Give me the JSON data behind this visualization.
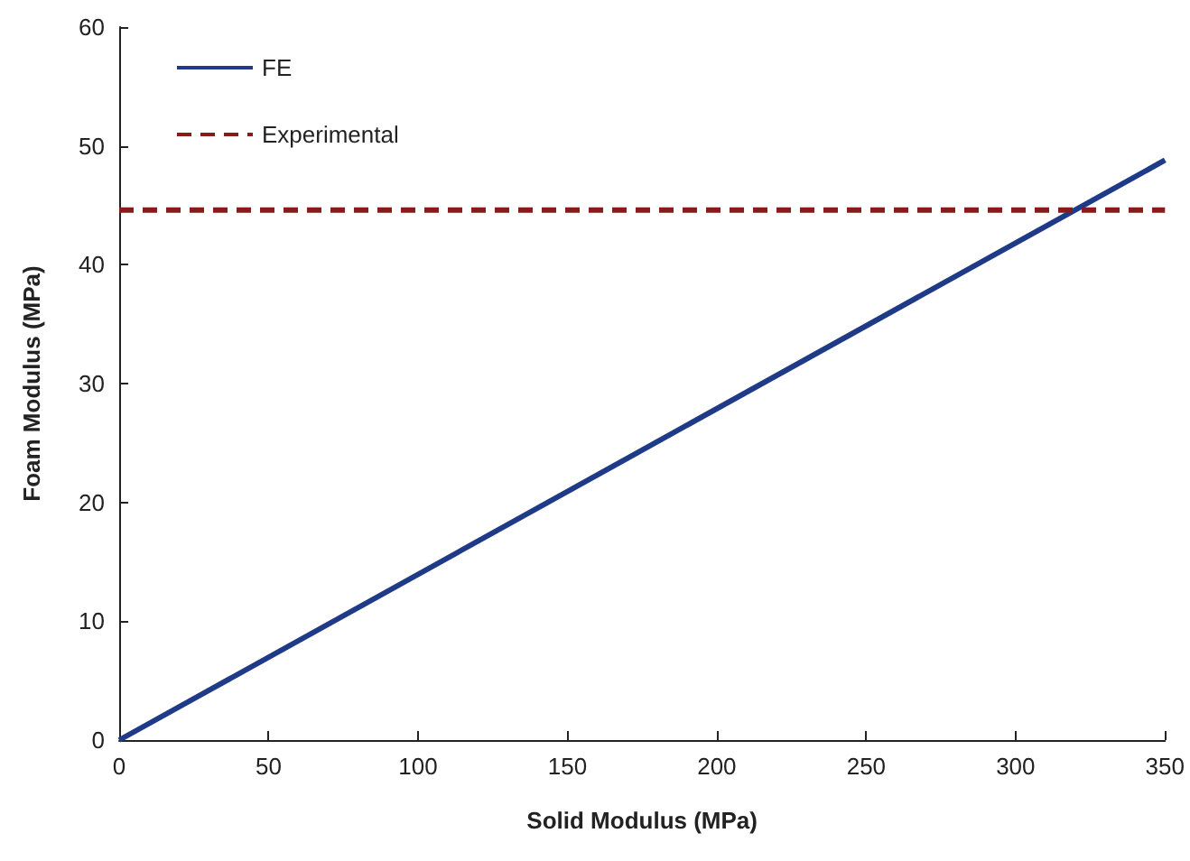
{
  "chart_data": {
    "type": "line",
    "xlabel": "Solid Modulus (MPa)",
    "ylabel": "Foam Modulus (MPa)",
    "x": [
      0,
      350
    ],
    "series": [
      {
        "name": "FE",
        "color": "#1f3a87",
        "values": [
          0,
          48.8
        ],
        "line_style": "solid"
      },
      {
        "name": "Experimental",
        "color": "#8b1a1a",
        "values": [
          44.6,
          44.6
        ],
        "line_style": "dashed"
      }
    ],
    "xlim": [
      0,
      350
    ],
    "xticks": [
      0,
      50,
      100,
      150,
      200,
      250,
      300,
      350
    ],
    "ylim": [
      0,
      60
    ],
    "yticks": [
      0,
      10,
      20,
      30,
      40,
      50,
      60
    ],
    "grid": false,
    "legend": "top left"
  }
}
